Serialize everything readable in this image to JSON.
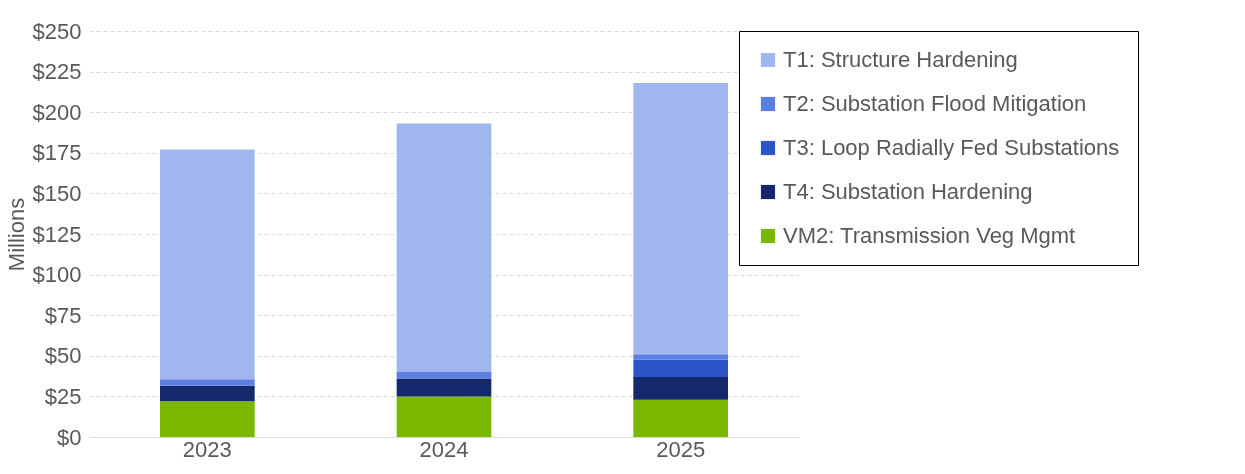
{
  "chart_data": {
    "type": "bar",
    "stacked": true,
    "ylabel": "Millions",
    "categories": [
      "2023",
      "2024",
      "2025"
    ],
    "series": [
      {
        "name": "VM2: Transmission Veg Mgmt",
        "color": "#7ab800",
        "values": [
          22,
          25,
          23
        ]
      },
      {
        "name": "T4: Substation Hardening",
        "color": "#13296b",
        "values": [
          9.5,
          11,
          14
        ]
      },
      {
        "name": "T3: Loop Radially Fed Substations",
        "color": "#2e55c8",
        "values": [
          0,
          0,
          10.5
        ]
      },
      {
        "name": "T2: Substation Flood Mitigation",
        "color": "#5a7fe0",
        "values": [
          4,
          4,
          3.5
        ]
      },
      {
        "name": "T1: Structure Hardening",
        "color": "#a0b6ee",
        "values": [
          141.5,
          153,
          167
        ]
      }
    ],
    "ylim": [
      0,
      250
    ],
    "yticks": [
      {
        "value": 0,
        "label": "$0"
      },
      {
        "value": 25,
        "label": "$25"
      },
      {
        "value": 50,
        "label": "$50"
      },
      {
        "value": 75,
        "label": "$75"
      },
      {
        "value": 100,
        "label": "$100"
      },
      {
        "value": 125,
        "label": "$125"
      },
      {
        "value": 150,
        "label": "$150"
      },
      {
        "value": 175,
        "label": "$175"
      },
      {
        "value": 200,
        "label": "$200"
      },
      {
        "value": 225,
        "label": "$225"
      },
      {
        "value": 250,
        "label": "$250"
      }
    ],
    "grid": "y",
    "legend": "right"
  }
}
